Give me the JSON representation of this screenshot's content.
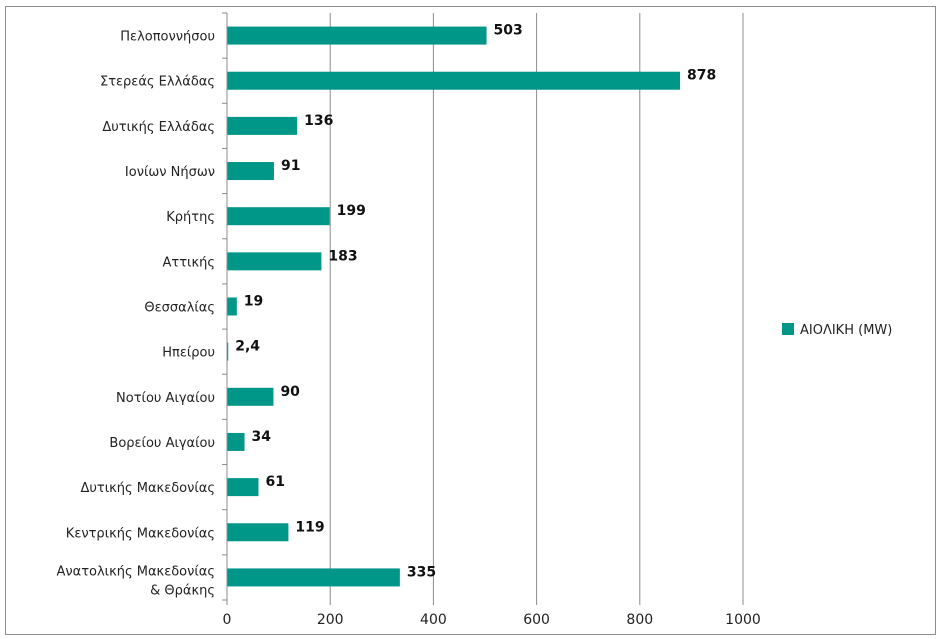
{
  "chart_data": {
    "type": "bar",
    "orientation": "horizontal",
    "categories": [
      "Πελοποννήσου",
      "Στερεάς Ελλάδας",
      "Δυτικής Ελλάδας",
      "Ιονίων Νήσων",
      "Κρήτης",
      "Αττικής",
      "Θεσσαλίας",
      "Ηπείρου",
      "Νοτίου Αιγαίου",
      "Βορείου Αιγαίου",
      "Δυτικής Μακεδονίας",
      "Κεντρικής Μακεδονίας",
      "Ανατολικής Μακεδονίας & Θράκης"
    ],
    "series": [
      {
        "name": "ΑΙΟΛΙΚΗ (MW)",
        "color": "#009688",
        "values": [
          503,
          878,
          136,
          91,
          199,
          183,
          19,
          2.4,
          90,
          34,
          61,
          119,
          335
        ],
        "data_labels": [
          "503",
          "878",
          "136",
          "91",
          "199",
          "183",
          "19",
          "2,4",
          "90",
          "34",
          "61",
          "119",
          "335"
        ]
      }
    ],
    "x_ticks": [
      "0",
      "200",
      "400",
      "600",
      "800",
      "1000"
    ],
    "xlim": [
      0,
      1000
    ],
    "grid": "vertical",
    "legend": "right",
    "title": "",
    "xlabel": "",
    "ylabel": ""
  }
}
